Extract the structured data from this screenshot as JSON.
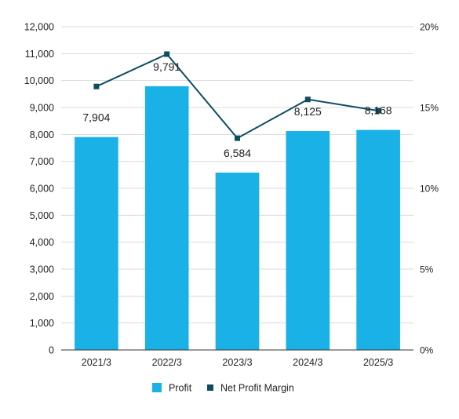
{
  "chart_data": {
    "type": "bar",
    "title": "",
    "categories": [
      "2021/3",
      "2022/3",
      "2023/3",
      "2024/3",
      "2025/3"
    ],
    "series": [
      {
        "name": "Profit",
        "type": "bar",
        "axis": "left",
        "values": [
          7904,
          9791,
          6584,
          8125,
          8168
        ],
        "labels": [
          "7,904",
          "9,791",
          "6,584",
          "8,125",
          "8,168"
        ]
      },
      {
        "name": "Net Profit Margin",
        "type": "line",
        "axis": "right",
        "values": [
          16.3,
          18.3,
          13.1,
          15.5,
          14.8
        ]
      }
    ],
    "y_left": {
      "min": 0,
      "max": 12000,
      "ticks": [
        "0",
        "1,000",
        "2,000",
        "3,000",
        "4,000",
        "5,000",
        "6,000",
        "7,000",
        "8,000",
        "9,000",
        "10,000",
        "11,000",
        "12,000"
      ]
    },
    "y_right": {
      "min": 0,
      "max": 20,
      "ticks": [
        "0%",
        "5%",
        "10%",
        "15%",
        "20%"
      ]
    },
    "grid": true,
    "legend": "bottom-center",
    "colors": {
      "bar": "#1ab2e6",
      "line": "#0e4d61",
      "grid": "#d9d9d9",
      "axis": "#333333",
      "text": "#222222"
    }
  }
}
